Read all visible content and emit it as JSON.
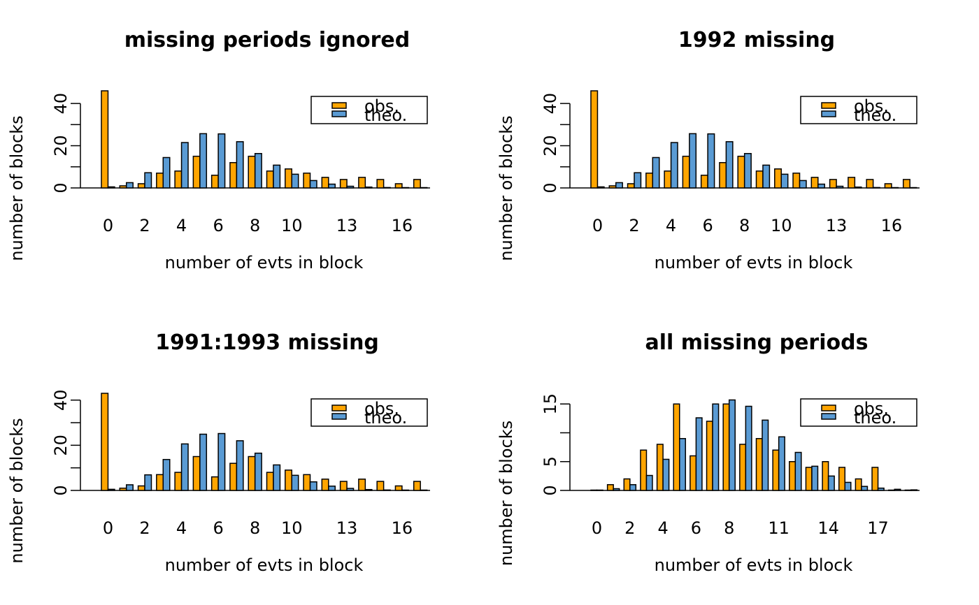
{
  "chart_data": [
    {
      "type": "bar",
      "title": "missing periods ignored",
      "xlabel": "number of evts in block",
      "ylabel": "number of blocks",
      "categories": [
        "0",
        "1",
        "2",
        "3",
        "4",
        "5",
        "6",
        "7",
        "8",
        "9",
        "10",
        "11",
        "12",
        "13",
        "14",
        "15",
        "16",
        "17"
      ],
      "x_tick_labels": [
        "0",
        "2",
        "4",
        "6",
        "8",
        "10",
        "13",
        "16"
      ],
      "y_ticks": [
        0,
        20,
        40
      ],
      "ylim": [
        0,
        46
      ],
      "series": [
        {
          "name": "obs.",
          "values": [
            46,
            1,
            2,
            7,
            8,
            15,
            6,
            12,
            15,
            8,
            9,
            7,
            5,
            4,
            5,
            4,
            2,
            4
          ]
        },
        {
          "name": "theo.",
          "values": [
            0.5,
            2.5,
            7.2,
            14.4,
            21.5,
            25.7,
            25.6,
            21.9,
            16.3,
            10.8,
            6.5,
            3.5,
            1.8,
            0.8,
            0.4,
            0.2,
            0.1,
            0.0
          ]
        }
      ],
      "legend_position": "top-right"
    },
    {
      "type": "bar",
      "title": "1992 missing",
      "xlabel": "number of evts in block",
      "ylabel": "number of blocks",
      "categories": [
        "0",
        "1",
        "2",
        "3",
        "4",
        "5",
        "6",
        "7",
        "8",
        "9",
        "10",
        "11",
        "12",
        "13",
        "14",
        "15",
        "16",
        "17"
      ],
      "x_tick_labels": [
        "0",
        "2",
        "4",
        "6",
        "8",
        "10",
        "13",
        "16"
      ],
      "y_ticks": [
        0,
        20,
        40
      ],
      "ylim": [
        0,
        46
      ],
      "series": [
        {
          "name": "obs.",
          "values": [
            46,
            1,
            2,
            7,
            8,
            15,
            6,
            12,
            15,
            8,
            9,
            7,
            5,
            4,
            5,
            4,
            2,
            4
          ]
        },
        {
          "name": "theo.",
          "values": [
            0.5,
            2.5,
            7.2,
            14.4,
            21.5,
            25.7,
            25.6,
            21.9,
            16.3,
            10.8,
            6.5,
            3.5,
            1.8,
            0.8,
            0.4,
            0.2,
            0.1,
            0.0
          ]
        }
      ],
      "legend_position": "top-right"
    },
    {
      "type": "bar",
      "title": "1991:1993 missing",
      "xlabel": "number of evts in block",
      "ylabel": "number of blocks",
      "categories": [
        "0",
        "1",
        "2",
        "3",
        "4",
        "5",
        "6",
        "7",
        "8",
        "9",
        "10",
        "11",
        "12",
        "13",
        "14",
        "15",
        "16",
        "17"
      ],
      "x_tick_labels": [
        "0",
        "2",
        "4",
        "6",
        "8",
        "10",
        "13",
        "16"
      ],
      "y_ticks": [
        0,
        20,
        40
      ],
      "ylim": [
        0,
        43
      ],
      "series": [
        {
          "name": "obs.",
          "values": [
            43,
            1,
            2,
            7,
            8,
            15,
            6,
            12,
            15,
            8,
            9,
            7,
            5,
            4,
            5,
            4,
            2,
            4
          ]
        },
        {
          "name": "theo.",
          "values": [
            0.5,
            2.5,
            6.9,
            13.7,
            20.6,
            24.9,
            25.2,
            22.0,
            16.5,
            11.3,
            6.7,
            3.8,
            1.9,
            0.9,
            0.4,
            0.2,
            0.1,
            0.0
          ]
        }
      ],
      "legend_position": "top-right"
    },
    {
      "type": "bar",
      "title": "all missing periods",
      "xlabel": "number of evts in block",
      "ylabel": "number of blocks",
      "categories": [
        "0",
        "1",
        "2",
        "3",
        "4",
        "5",
        "6",
        "7",
        "8",
        "9",
        "10",
        "11",
        "12",
        "13",
        "14",
        "15",
        "16",
        "17",
        "18",
        "19"
      ],
      "x_tick_labels": [
        "0",
        "2",
        "4",
        "6",
        "8",
        "11",
        "14",
        "17"
      ],
      "y_ticks": [
        0,
        5,
        15
      ],
      "y_tick_marks": [
        0,
        5,
        10,
        15
      ],
      "ylim": [
        0,
        16
      ],
      "series": [
        {
          "name": "obs.",
          "values": [
            0,
            1,
            2,
            7,
            8,
            15,
            6,
            12,
            15,
            8,
            9,
            7,
            5,
            4,
            5,
            4,
            2,
            4,
            0,
            0
          ]
        },
        {
          "name": "theo.",
          "values": [
            0.05,
            0.3,
            1.0,
            2.6,
            5.4,
            9.0,
            12.6,
            15.0,
            15.7,
            14.6,
            12.2,
            9.3,
            6.6,
            4.2,
            2.5,
            1.4,
            0.7,
            0.4,
            0.2,
            0.1
          ]
        }
      ],
      "legend_position": "top-right"
    }
  ],
  "colors": {
    "obs": "#FFA500",
    "theo": "#5A9BD4",
    "stroke": "#000000"
  }
}
